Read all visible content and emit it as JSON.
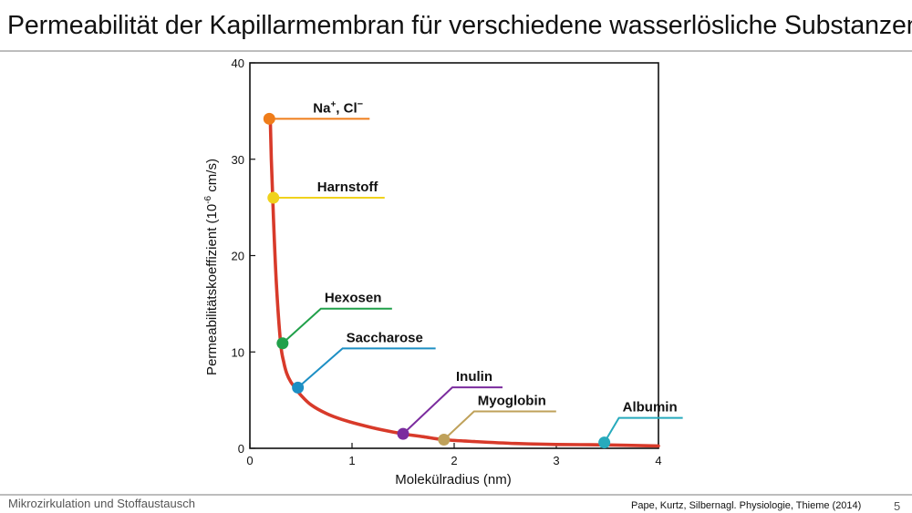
{
  "slide": {
    "title": "Permeabilität der Kapillarmembran für verschiedene wasserlösliche Substanzen",
    "footer_left": "Mikrozirkulation und Stoffaustausch",
    "source": "Pape, Kurtz, Silbernagl. Physiologie, Thieme (2014)",
    "page_number": "5"
  },
  "chart_data": {
    "type": "line",
    "xlabel": "Molekülradius (nm)",
    "ylabel_main": "Permeabilitätskoeffizient (10",
    "ylabel_exp": "-6",
    "ylabel_unit": " cm/s)",
    "xlim": [
      0,
      4
    ],
    "ylim": [
      0,
      40
    ],
    "x_ticks": [
      "0",
      "1",
      "2",
      "3",
      "4"
    ],
    "y_ticks": [
      "0",
      "10",
      "20",
      "30",
      "40"
    ],
    "grid": false,
    "curve_color": "#d83a2a",
    "curve": {
      "x": [
        0.2,
        0.21,
        0.23,
        0.26,
        0.3,
        0.33,
        0.36,
        0.4,
        0.45,
        0.5,
        0.6,
        0.75,
        0.9,
        1.1,
        1.3,
        1.5,
        1.7,
        1.9,
        2.2,
        2.6,
        3.0,
        3.5,
        4.0
      ],
      "y": [
        34,
        30,
        24,
        17,
        11,
        9,
        7.8,
        6.9,
        6.2,
        5.5,
        4.5,
        3.6,
        3.0,
        2.4,
        1.9,
        1.5,
        1.2,
        0.9,
        0.7,
        0.5,
        0.4,
        0.35,
        0.25
      ]
    },
    "substances": [
      {
        "label": "Na",
        "label_sup": "+",
        "label_tail": ", Cl",
        "label_tail_sup": "−",
        "x": 0.19,
        "y": 34.2,
        "color": "#ef7d1a"
      },
      {
        "label": "Harnstoff",
        "label_sup": "",
        "label_tail": "",
        "label_tail_sup": "",
        "x": 0.23,
        "y": 26.0,
        "color": "#f0d21c"
      },
      {
        "label": "Hexosen",
        "label_sup": "",
        "label_tail": "",
        "label_tail_sup": "",
        "x": 0.32,
        "y": 10.9,
        "color": "#21a04a"
      },
      {
        "label": "Saccharose",
        "label_sup": "",
        "label_tail": "",
        "label_tail_sup": "",
        "x": 0.47,
        "y": 6.3,
        "color": "#1d8fc4"
      },
      {
        "label": "Inulin",
        "label_sup": "",
        "label_tail": "",
        "label_tail_sup": "",
        "x": 1.5,
        "y": 1.5,
        "color": "#7b2c9e"
      },
      {
        "label": "Myoglobin",
        "label_sup": "",
        "label_tail": "",
        "label_tail_sup": "",
        "x": 1.9,
        "y": 0.9,
        "color": "#bfa15a"
      },
      {
        "label": "Albumin",
        "label_sup": "",
        "label_tail": "",
        "label_tail_sup": "",
        "x": 3.47,
        "y": 0.6,
        "color": "#27aabc"
      }
    ]
  }
}
